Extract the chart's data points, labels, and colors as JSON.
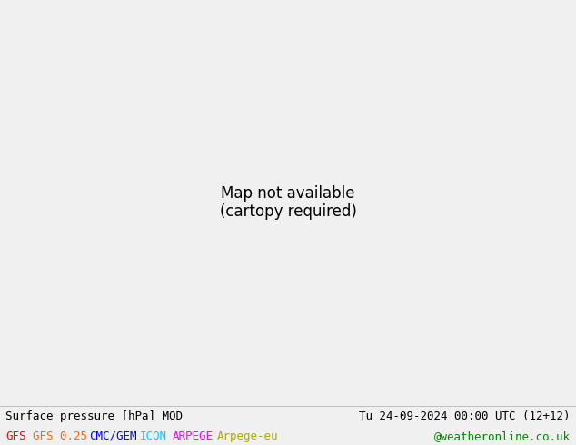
{
  "title_left": "Surface pressure [hPa] MOD",
  "title_right": "Tu 24-09-2024 00:00 UTC (12+12)",
  "legend_items": [
    {
      "label": "GFS",
      "color": "#ff0000"
    },
    {
      "label": "GFS 0.25",
      "color": "#ff6600"
    },
    {
      "label": "CMC/GEM",
      "color": "#0000ff"
    },
    {
      "label": "ICON",
      "color": "#00ccff"
    },
    {
      "label": "ARPEGE",
      "color": "#ff00ff"
    },
    {
      "label": "Arpege-eu",
      "color": "#aaaa00"
    }
  ],
  "credit": "@weatheronline.co.uk",
  "credit_color": "#008800",
  "bg_color": "#f0f0f0",
  "map_bg_land": "#bbffbb",
  "map_bg_sea": "#e8e8e8",
  "fig_width": 6.34,
  "fig_height": 4.9,
  "dpi": 100,
  "bottom_bar_color": "#e8e8e8",
  "title_fontsize": 9.0,
  "legend_fontsize": 9.0,
  "lon_min": -120,
  "lon_max": -30,
  "lat_min": -20,
  "lat_max": 40
}
